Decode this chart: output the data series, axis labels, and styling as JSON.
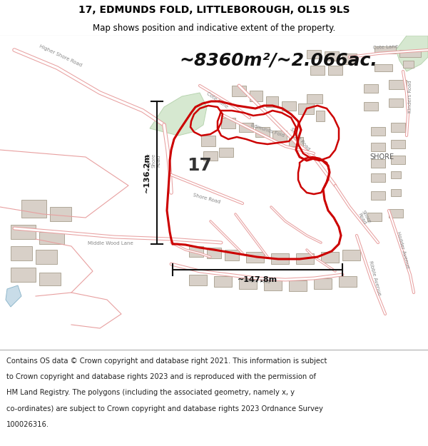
{
  "title_line1": "17, EDMUNDS FOLD, LITTLEBOROUGH, OL15 9LS",
  "title_line2": "Map shows position and indicative extent of the property.",
  "area_text": "~8360m²/~2.066ac.",
  "width_label": "~147.8m",
  "height_label": "~136.2m",
  "plot_number": "17",
  "footer_lines": [
    "Contains OS data © Crown copyright and database right 2021. This information is subject",
    "to Crown copyright and database rights 2023 and is reproduced with the permission of",
    "HM Land Registry. The polygons (including the associated geometry, namely x, y",
    "co-ordinates) are subject to Crown copyright and database rights 2023 Ordnance Survey",
    "100026316."
  ],
  "map_bg_color": "#ffffff",
  "title_bg_color": "#ffffff",
  "footer_bg_color": "#ffffff",
  "road_outline_color": "#e8a0a0",
  "road_fill_color": "#ffffff",
  "green_fill": "#d6e8d0",
  "green_edge": "#b8d4b0",
  "blue_fill": "#c8dce8",
  "building_fill": "#d8d0c8",
  "building_edge": "#b0a898",
  "property_color": "#cc0000",
  "dim_line_color": "#111111",
  "text_color": "#333333",
  "road_label_color": "#888888",
  "title_fontsize": 10,
  "subtitle_fontsize": 8.5,
  "area_fontsize": 18,
  "dim_label_fontsize": 8,
  "plot_num_fontsize": 18,
  "footer_fontsize": 7.2,
  "road_label_fontsize": 5
}
